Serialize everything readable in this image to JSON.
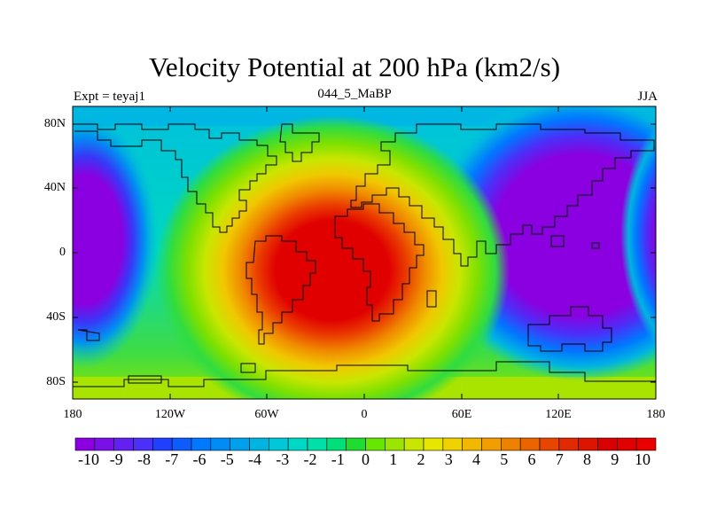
{
  "title": "Velocity Potential at 200 hPa (km2/s)",
  "subtitle_left": "Expt = teyaj1",
  "subtitle_center": "044_5_MaBP",
  "subtitle_right": "JJA",
  "lat_labels": [
    "80N",
    "40N",
    "0",
    "40S",
    "80S"
  ],
  "lon_labels": [
    "180",
    "120W",
    "60W",
    "0",
    "60E",
    "120E",
    "180"
  ],
  "colorbar_labels": [
    "-10",
    "-9",
    "-8",
    "-7",
    "-6",
    "-5",
    "-4",
    "-3",
    "-2",
    "-1",
    "0",
    "1",
    "2",
    "3",
    "4",
    "5",
    "6",
    "7",
    "8",
    "9",
    "10"
  ],
  "colorbar_colors": [
    "#8a00e0",
    "#7a10e8",
    "#6420f0",
    "#4a30f8",
    "#2040ff",
    "#0d5cff",
    "#0078ff",
    "#008cf5",
    "#00a0ec",
    "#00b4e2",
    "#00c8d8",
    "#00d8c6",
    "#00e0a8",
    "#00e07a",
    "#20dc30",
    "#66e600",
    "#9ae600",
    "#c8e600",
    "#e6e600",
    "#f0d200",
    "#f2b800",
    "#f29e00",
    "#ee8200",
    "#ea6400",
    "#e64600",
    "#e22a00",
    "#dc1400",
    "#d80000",
    "#e00000",
    "#e80000"
  ],
  "map_data": {
    "variable": "Velocity Potential at 200 hPa",
    "units": "km2/s",
    "season": "JJA",
    "lon_range": [
      -180,
      180
    ],
    "lat_range": [
      -90,
      90
    ],
    "color_range": [
      -10,
      10
    ],
    "extrema": [
      {
        "name": "max",
        "lon": -30,
        "lat": -5,
        "value": 10
      },
      {
        "name": "min",
        "lon": 150,
        "lat": 10,
        "value": -10
      },
      {
        "name": "min",
        "lon": -170,
        "lat": 10,
        "value": -10
      }
    ]
  }
}
